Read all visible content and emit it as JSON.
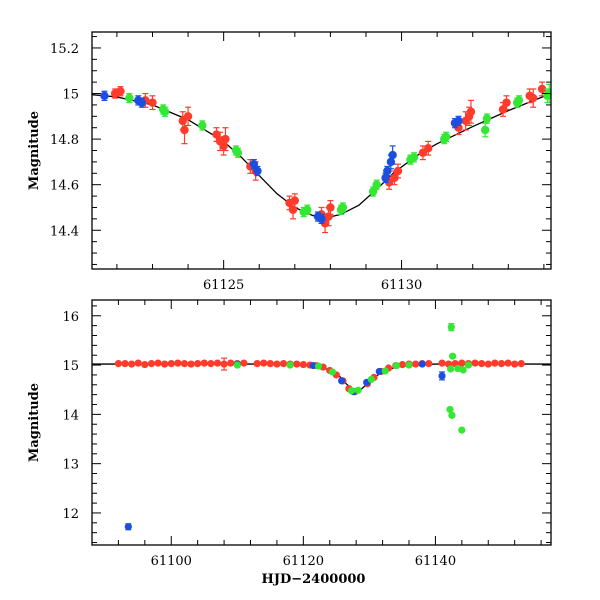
{
  "colors": {
    "red": "#ff3b2b",
    "blue": "#1a4fe0",
    "green": "#33e833",
    "model": "#000000"
  },
  "chart_data": [
    {
      "type": "scatter",
      "id": "top",
      "title": "",
      "xlabel": "",
      "ylabel": "Magnitude",
      "xlim": [
        61121.3,
        61134.2
      ],
      "ylim": [
        15.27,
        14.23
      ],
      "x_ticks": [
        61125,
        61130
      ],
      "x_tick_labels": [
        "61125",
        "61130"
      ],
      "y_ticks": [
        14.4,
        14.6,
        14.8,
        15.0,
        15.2
      ],
      "y_tick_labels": [
        "14.4",
        "14.6",
        "14.8",
        "15",
        "15.2"
      ],
      "model_curve": {
        "x": [
          61121.3,
          61122.0,
          61123.0,
          61124.0,
          61125.0,
          61125.5,
          61126.0,
          61126.5,
          61127.0,
          61127.5,
          61127.9,
          61128.3,
          61128.8,
          61129.3,
          61129.8,
          61130.5,
          61131.0,
          61132.0,
          61133.0,
          61134.2
        ],
        "y": [
          14.995,
          14.985,
          14.95,
          14.885,
          14.79,
          14.72,
          14.64,
          14.56,
          14.5,
          14.465,
          14.455,
          14.47,
          14.51,
          14.58,
          14.655,
          14.735,
          14.78,
          14.855,
          14.925,
          15.0
        ]
      },
      "series": [
        {
          "name": "red",
          "color": "#ff3b2b",
          "points": [
            {
              "x": 61121.95,
              "y": 15.0,
              "err": 0.02
            },
            {
              "x": 61122.1,
              "y": 15.01,
              "err": 0.02
            },
            {
              "x": 61122.8,
              "y": 14.97,
              "err": 0.03
            },
            {
              "x": 61123.0,
              "y": 14.96,
              "err": 0.03
            },
            {
              "x": 61123.85,
              "y": 14.88,
              "err": 0.04
            },
            {
              "x": 61123.9,
              "y": 14.84,
              "err": 0.06
            },
            {
              "x": 61124.0,
              "y": 14.9,
              "err": 0.04
            },
            {
              "x": 61124.8,
              "y": 14.82,
              "err": 0.03
            },
            {
              "x": 61124.9,
              "y": 14.79,
              "err": 0.04
            },
            {
              "x": 61125.0,
              "y": 14.77,
              "err": 0.04
            },
            {
              "x": 61125.05,
              "y": 14.8,
              "err": 0.05
            },
            {
              "x": 61125.75,
              "y": 14.68,
              "err": 0.03
            },
            {
              "x": 61125.9,
              "y": 14.66,
              "err": 0.04
            },
            {
              "x": 61126.85,
              "y": 14.52,
              "err": 0.03
            },
            {
              "x": 61126.95,
              "y": 14.49,
              "err": 0.04
            },
            {
              "x": 61127.0,
              "y": 14.53,
              "err": 0.03
            },
            {
              "x": 61127.75,
              "y": 14.47,
              "err": 0.03
            },
            {
              "x": 61127.85,
              "y": 14.43,
              "err": 0.04
            },
            {
              "x": 61127.95,
              "y": 14.46,
              "err": 0.04
            },
            {
              "x": 61128.0,
              "y": 14.5,
              "err": 0.03
            },
            {
              "x": 61129.65,
              "y": 14.61,
              "err": 0.03
            },
            {
              "x": 61129.8,
              "y": 14.63,
              "err": 0.03
            },
            {
              "x": 61129.9,
              "y": 14.66,
              "err": 0.03
            },
            {
              "x": 61130.6,
              "y": 14.74,
              "err": 0.03
            },
            {
              "x": 61130.75,
              "y": 14.76,
              "err": 0.03
            },
            {
              "x": 61131.6,
              "y": 14.85,
              "err": 0.03
            },
            {
              "x": 61131.8,
              "y": 14.88,
              "err": 0.04
            },
            {
              "x": 61131.9,
              "y": 14.9,
              "err": 0.04
            },
            {
              "x": 61131.95,
              "y": 14.92,
              "err": 0.05
            },
            {
              "x": 61132.85,
              "y": 14.93,
              "err": 0.03
            },
            {
              "x": 61132.95,
              "y": 14.96,
              "err": 0.03
            },
            {
              "x": 61133.6,
              "y": 14.99,
              "err": 0.03
            },
            {
              "x": 61133.7,
              "y": 14.98,
              "err": 0.04
            },
            {
              "x": 61133.95,
              "y": 15.02,
              "err": 0.03
            }
          ]
        },
        {
          "name": "blue",
          "color": "#1a4fe0",
          "points": [
            {
              "x": 61121.65,
              "y": 14.99,
              "err": 0.02
            },
            {
              "x": 61122.6,
              "y": 14.97,
              "err": 0.02
            },
            {
              "x": 61122.7,
              "y": 14.96,
              "err": 0.02
            },
            {
              "x": 61125.85,
              "y": 14.69,
              "err": 0.02
            },
            {
              "x": 61125.95,
              "y": 14.66,
              "err": 0.02
            },
            {
              "x": 61127.65,
              "y": 14.46,
              "err": 0.02
            },
            {
              "x": 61127.75,
              "y": 14.45,
              "err": 0.02
            },
            {
              "x": 61129.55,
              "y": 14.63,
              "err": 0.02
            },
            {
              "x": 61129.6,
              "y": 14.66,
              "err": 0.02
            },
            {
              "x": 61129.7,
              "y": 14.7,
              "err": 0.03
            },
            {
              "x": 61129.75,
              "y": 14.73,
              "err": 0.04
            },
            {
              "x": 61131.5,
              "y": 14.87,
              "err": 0.02
            },
            {
              "x": 61131.6,
              "y": 14.88,
              "err": 0.02
            }
          ]
        },
        {
          "name": "green",
          "color": "#33e833",
          "points": [
            {
              "x": 61122.35,
              "y": 14.98,
              "err": 0.02
            },
            {
              "x": 61123.3,
              "y": 14.93,
              "err": 0.02
            },
            {
              "x": 61123.35,
              "y": 14.92,
              "err": 0.02
            },
            {
              "x": 61124.4,
              "y": 14.86,
              "err": 0.02
            },
            {
              "x": 61125.35,
              "y": 14.75,
              "err": 0.02
            },
            {
              "x": 61125.4,
              "y": 14.74,
              "err": 0.02
            },
            {
              "x": 61127.25,
              "y": 14.48,
              "err": 0.02
            },
            {
              "x": 61127.35,
              "y": 14.49,
              "err": 0.02
            },
            {
              "x": 61128.3,
              "y": 14.49,
              "err": 0.02
            },
            {
              "x": 61128.35,
              "y": 14.5,
              "err": 0.02
            },
            {
              "x": 61129.2,
              "y": 14.57,
              "err": 0.02
            },
            {
              "x": 61129.3,
              "y": 14.6,
              "err": 0.02
            },
            {
              "x": 61130.25,
              "y": 14.71,
              "err": 0.02
            },
            {
              "x": 61130.35,
              "y": 14.72,
              "err": 0.02
            },
            {
              "x": 61131.2,
              "y": 14.8,
              "err": 0.02
            },
            {
              "x": 61131.25,
              "y": 14.81,
              "err": 0.02
            },
            {
              "x": 61132.35,
              "y": 14.84,
              "err": 0.03
            },
            {
              "x": 61132.4,
              "y": 14.89,
              "err": 0.02
            },
            {
              "x": 61133.25,
              "y": 14.96,
              "err": 0.02
            },
            {
              "x": 61133.3,
              "y": 14.97,
              "err": 0.02
            },
            {
              "x": 61134.1,
              "y": 14.99,
              "err": 0.03
            },
            {
              "x": 61134.15,
              "y": 15.0,
              "err": 0.04
            }
          ]
        }
      ]
    },
    {
      "type": "scatter",
      "id": "bottom",
      "title": "",
      "xlabel": "HJD−2400000",
      "ylabel": "Magnitude",
      "xlim": [
        61088.0,
        61157.5
      ],
      "ylim": [
        16.32,
        11.35
      ],
      "x_ticks": [
        61100,
        61120,
        61140
      ],
      "x_tick_labels": [
        "61100",
        "61120",
        "61140"
      ],
      "y_ticks": [
        12,
        13,
        14,
        15,
        16
      ],
      "y_tick_labels": [
        "12",
        "13",
        "14",
        "15",
        "16"
      ],
      "model_curve": {
        "x": [
          61088.0,
          61115.0,
          61118.0,
          61120.0,
          61122.0,
          61124.0,
          61125.5,
          61126.5,
          61127.5,
          61128.0,
          61128.6,
          61129.5,
          61130.5,
          61132.0,
          61134.0,
          61137.0,
          61140.0,
          61157.5
        ],
        "y": [
          15.02,
          15.02,
          15.01,
          15.0,
          14.98,
          14.9,
          14.77,
          14.62,
          14.5,
          14.46,
          14.49,
          14.6,
          14.73,
          14.86,
          14.96,
          15.0,
          15.02,
          15.02
        ]
      },
      "series": [
        {
          "name": "red",
          "color": "#ff3b2b",
          "points": [
            {
              "x": 61092.0,
              "y": 15.03
            },
            {
              "x": 61093.0,
              "y": 15.03
            },
            {
              "x": 61094.0,
              "y": 15.02
            },
            {
              "x": 61095.0,
              "y": 15.04
            },
            {
              "x": 61096.0,
              "y": 15.01
            },
            {
              "x": 61097.0,
              "y": 15.03
            },
            {
              "x": 61098.0,
              "y": 15.04
            },
            {
              "x": 61099.0,
              "y": 15.02
            },
            {
              "x": 61100.0,
              "y": 15.03
            },
            {
              "x": 61101.0,
              "y": 15.04
            },
            {
              "x": 61102.0,
              "y": 15.03
            },
            {
              "x": 61103.0,
              "y": 15.02
            },
            {
              "x": 61104.0,
              "y": 15.03
            },
            {
              "x": 61105.0,
              "y": 15.04
            },
            {
              "x": 61106.0,
              "y": 15.03
            },
            {
              "x": 61107.0,
              "y": 15.04
            },
            {
              "x": 61108.0,
              "y": 15.02,
              "err": 0.12
            },
            {
              "x": 61109.0,
              "y": 15.04
            },
            {
              "x": 61110.0,
              "y": 15.03
            },
            {
              "x": 61111.0,
              "y": 15.04
            },
            {
              "x": 61113.0,
              "y": 15.03
            },
            {
              "x": 61114.0,
              "y": 15.04
            },
            {
              "x": 61115.0,
              "y": 15.03
            },
            {
              "x": 61116.0,
              "y": 15.02
            },
            {
              "x": 61117.0,
              "y": 15.03
            },
            {
              "x": 61118.0,
              "y": 15.02
            },
            {
              "x": 61119.0,
              "y": 15.02
            },
            {
              "x": 61120.0,
              "y": 15.01
            },
            {
              "x": 61121.0,
              "y": 15.0
            },
            {
              "x": 61122.0,
              "y": 14.99
            },
            {
              "x": 61123.0,
              "y": 14.96
            },
            {
              "x": 61124.0,
              "y": 14.89
            },
            {
              "x": 61125.0,
              "y": 14.8
            },
            {
              "x": 61126.0,
              "y": 14.68
            },
            {
              "x": 61126.9,
              "y": 14.52
            },
            {
              "x": 61127.8,
              "y": 14.46
            },
            {
              "x": 61129.7,
              "y": 14.62
            },
            {
              "x": 61130.7,
              "y": 14.75
            },
            {
              "x": 61131.8,
              "y": 14.87
            },
            {
              "x": 61132.9,
              "y": 14.94
            },
            {
              "x": 61134.0,
              "y": 14.99
            },
            {
              "x": 61135.0,
              "y": 15.01
            },
            {
              "x": 61136.0,
              "y": 15.02
            },
            {
              "x": 61137.0,
              "y": 15.02
            },
            {
              "x": 61138.0,
              "y": 15.03
            },
            {
              "x": 61139.0,
              "y": 15.03
            },
            {
              "x": 61141.0,
              "y": 15.04
            },
            {
              "x": 61142.0,
              "y": 15.02
            },
            {
              "x": 61143.0,
              "y": 15.03
            },
            {
              "x": 61144.0,
              "y": 15.04
            },
            {
              "x": 61145.0,
              "y": 15.03
            },
            {
              "x": 61146.0,
              "y": 15.04
            },
            {
              "x": 61147.0,
              "y": 15.03
            },
            {
              "x": 61148.0,
              "y": 15.02
            },
            {
              "x": 61149.0,
              "y": 15.04
            },
            {
              "x": 61150.0,
              "y": 15.03
            },
            {
              "x": 61151.0,
              "y": 15.04
            },
            {
              "x": 61152.0,
              "y": 15.02
            },
            {
              "x": 61153.0,
              "y": 15.03
            }
          ]
        },
        {
          "name": "blue",
          "color": "#1a4fe0",
          "points": [
            {
              "x": 61093.5,
              "y": 11.72,
              "err": 0.06
            },
            {
              "x": 61110.0,
              "y": 15.02
            },
            {
              "x": 61121.5,
              "y": 14.99
            },
            {
              "x": 61125.8,
              "y": 14.68
            },
            {
              "x": 61127.6,
              "y": 14.46
            },
            {
              "x": 61129.6,
              "y": 14.65
            },
            {
              "x": 61131.5,
              "y": 14.87
            },
            {
              "x": 61138.0,
              "y": 15.02
            },
            {
              "x": 61141.0,
              "y": 14.78,
              "err": 0.08
            }
          ]
        },
        {
          "name": "green",
          "color": "#33e833",
          "points": [
            {
              "x": 61110.0,
              "y": 15.0
            },
            {
              "x": 61118.0,
              "y": 15.0
            },
            {
              "x": 61122.3,
              "y": 14.98
            },
            {
              "x": 61124.4,
              "y": 14.86
            },
            {
              "x": 61127.3,
              "y": 14.48
            },
            {
              "x": 61128.3,
              "y": 14.49
            },
            {
              "x": 61130.3,
              "y": 14.71
            },
            {
              "x": 61132.4,
              "y": 14.88
            },
            {
              "x": 61134.1,
              "y": 14.99
            },
            {
              "x": 61136.0,
              "y": 15.0
            },
            {
              "x": 61142.2,
              "y": 14.1
            },
            {
              "x": 61142.5,
              "y": 13.98
            },
            {
              "x": 61142.3,
              "y": 14.92
            },
            {
              "x": 61142.6,
              "y": 15.18
            },
            {
              "x": 61142.4,
              "y": 15.77,
              "err": 0.07
            },
            {
              "x": 61143.4,
              "y": 14.93
            },
            {
              "x": 61144.0,
              "y": 13.68
            },
            {
              "x": 61144.2,
              "y": 14.9
            },
            {
              "x": 61145.0,
              "y": 15.0
            }
          ]
        }
      ]
    }
  ]
}
